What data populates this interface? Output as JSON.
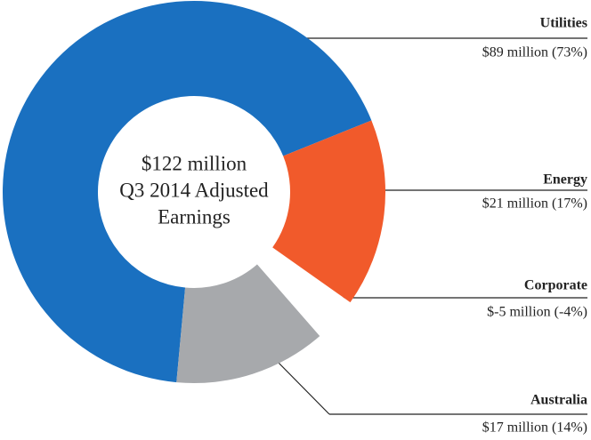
{
  "chart_data": {
    "type": "donut",
    "center_text": [
      "$122 million",
      "Q3 2014 Adjusted",
      "Earnings"
    ],
    "categories": [
      "Energy",
      "Corporate",
      "Australia",
      "Utilities"
    ],
    "values": [
      21,
      -5,
      17,
      89
    ],
    "value_labels": [
      "$21 million (17%)",
      "$-5 million (-4%)",
      "$17 million (14%)",
      "$89 million (73%)"
    ],
    "colors": [
      "#f15a2b",
      "#ffffff",
      "#a7a9ac",
      "#1a70c0"
    ]
  }
}
